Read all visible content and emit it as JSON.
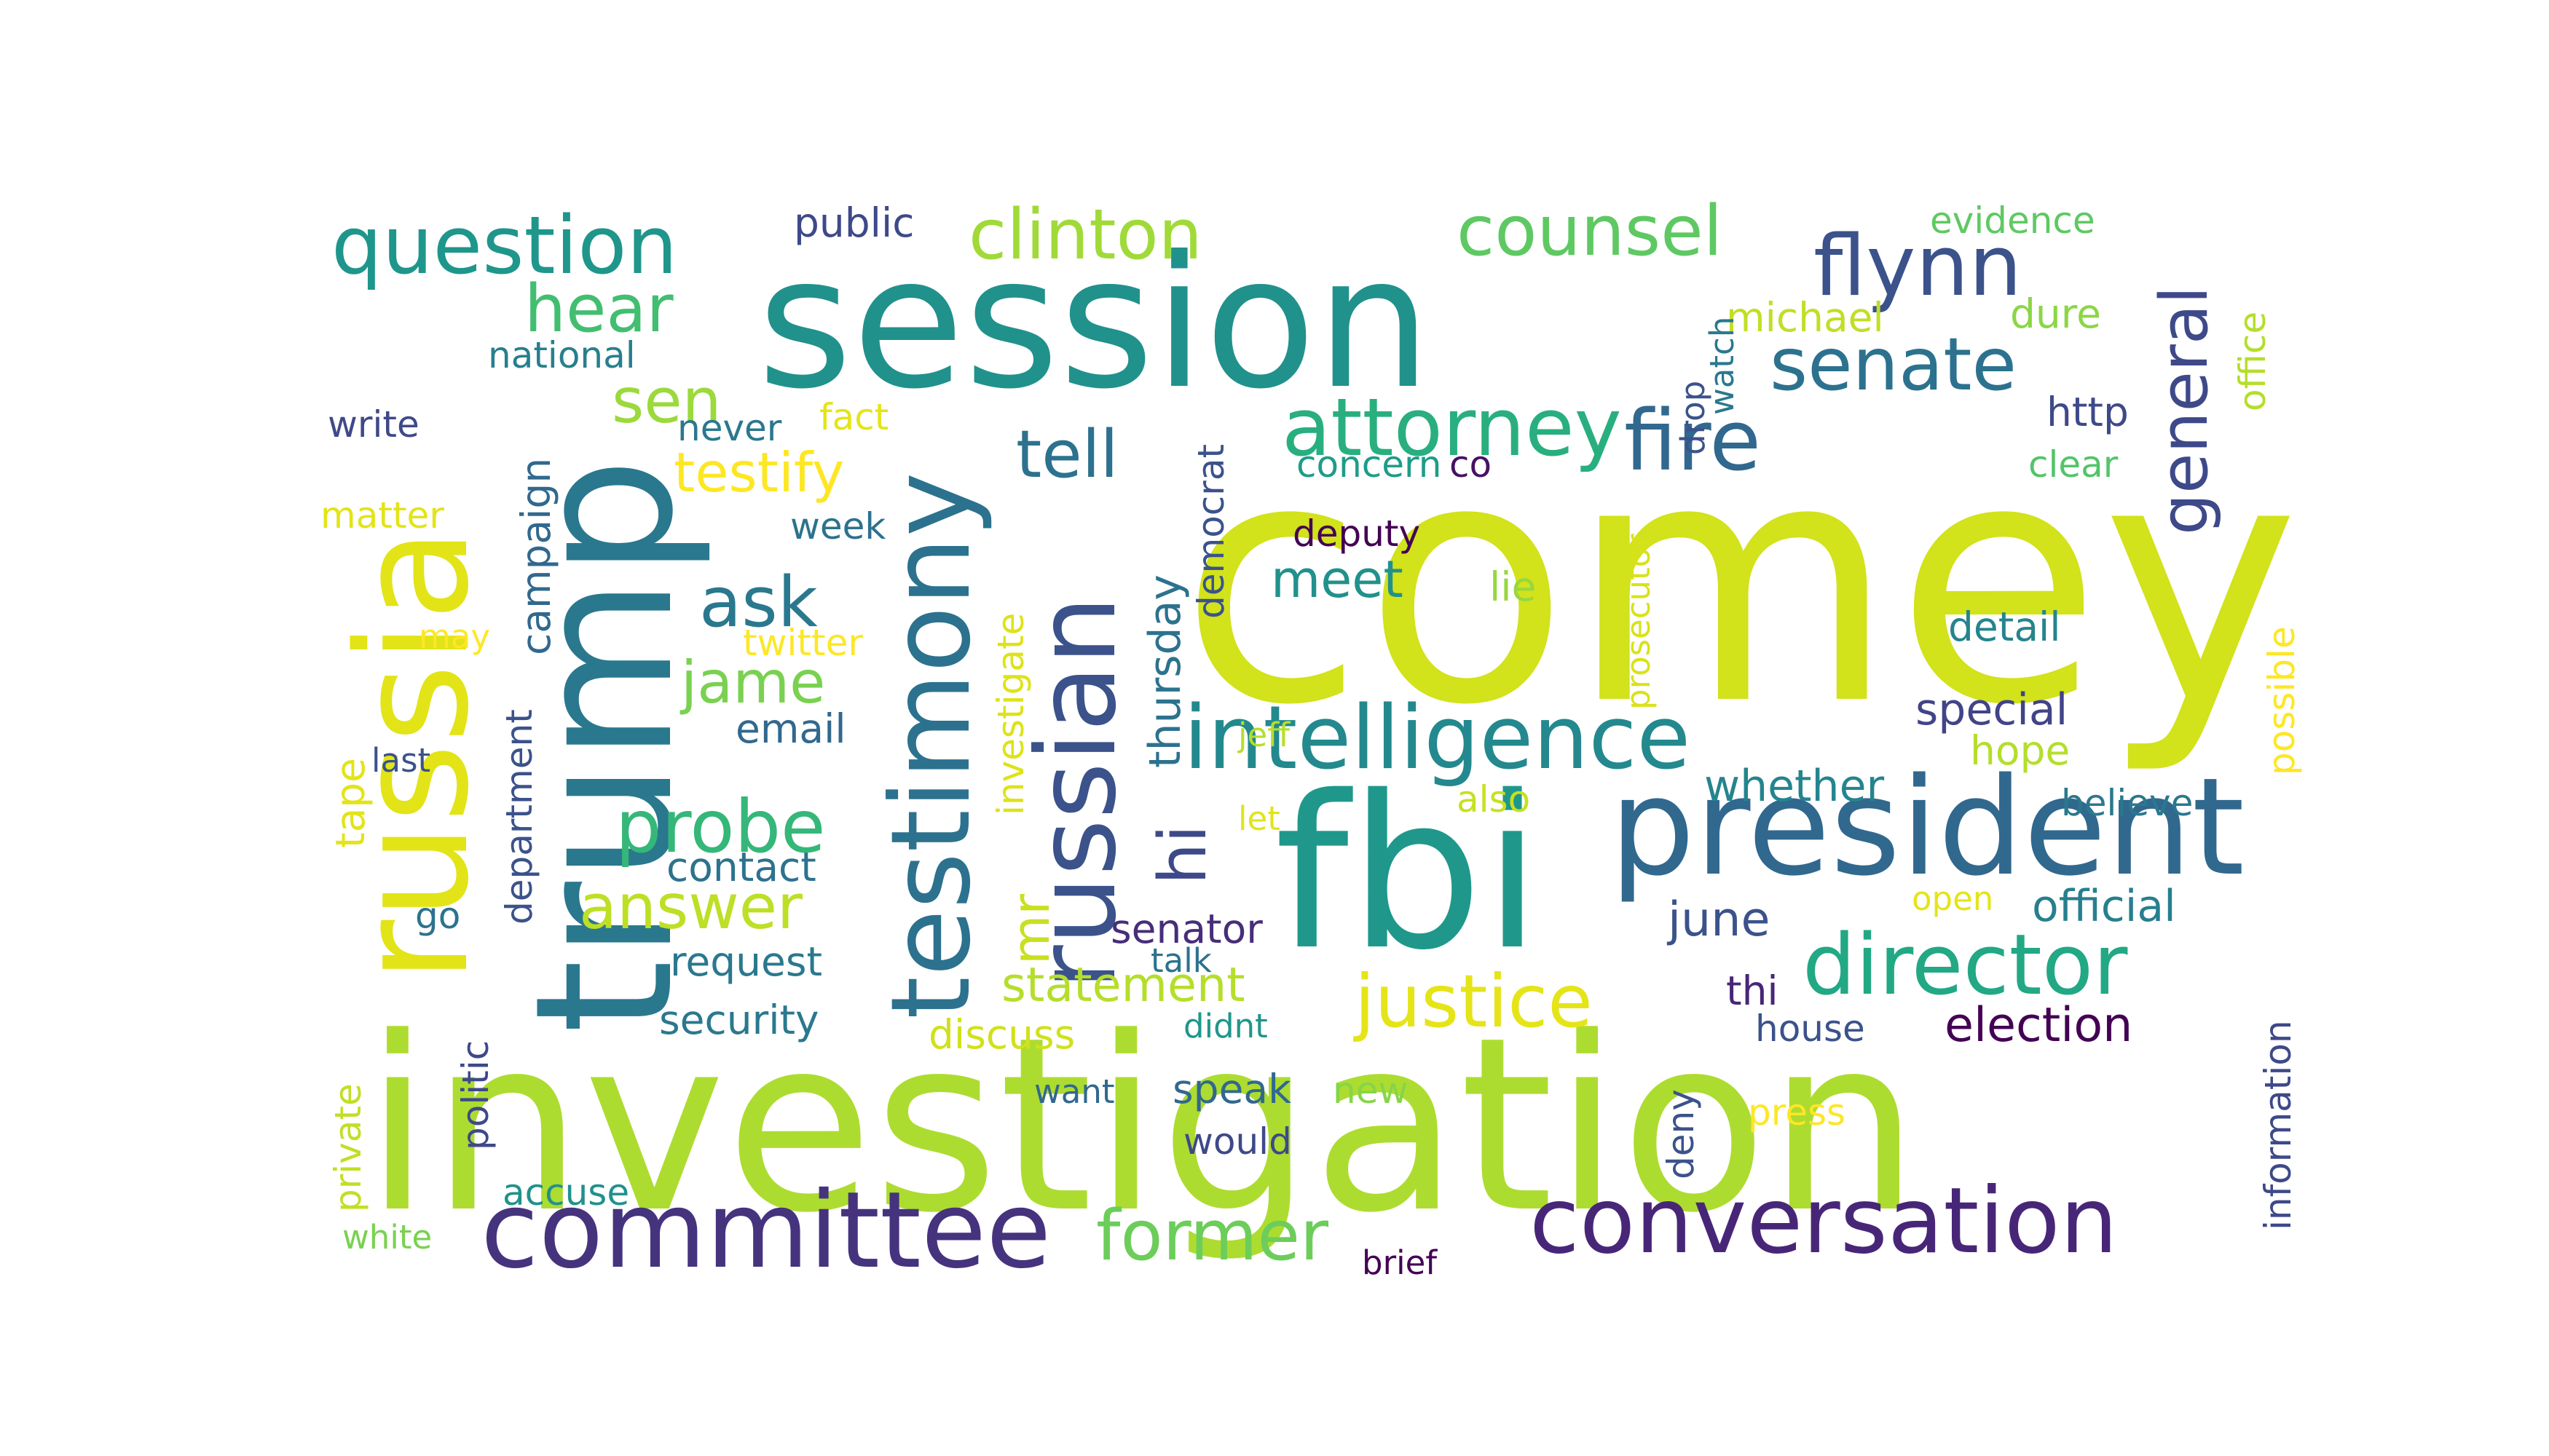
{
  "words": [
    {
      "text": "comey",
      "color": "#d2e21b"
    },
    {
      "text": "investigation",
      "color": "#addc30"
    },
    {
      "text": "session",
      "color": "#21918c"
    },
    {
      "text": "fbi",
      "color": "#1f988b"
    },
    {
      "text": "trump",
      "color": "#2a788e"
    },
    {
      "text": "russia",
      "color": "#e2e418"
    },
    {
      "text": "president",
      "color": "#31688e"
    },
    {
      "text": "testimony",
      "color": "#2c728e"
    },
    {
      "text": "russian",
      "color": "#3b528b"
    },
    {
      "text": "committee",
      "color": "#46337e"
    },
    {
      "text": "conversation",
      "color": "#482677"
    },
    {
      "text": "intelligence",
      "color": "#23898e"
    },
    {
      "text": "director",
      "color": "#22a884"
    },
    {
      "text": "question",
      "color": "#1f968b"
    },
    {
      "text": "attorney",
      "color": "#29af7f"
    },
    {
      "text": "senate",
      "color": "#2c728e"
    },
    {
      "text": "fire",
      "color": "#31688e"
    },
    {
      "text": "flynn",
      "color": "#3b528b"
    },
    {
      "text": "justice",
      "color": "#e5e419"
    },
    {
      "text": "clinton",
      "color": "#a0da39"
    },
    {
      "text": "counsel",
      "color": "#5ec962"
    },
    {
      "text": "general",
      "color": "#3e4989"
    },
    {
      "text": "probe",
      "color": "#35b779"
    },
    {
      "text": "former",
      "color": "#6ccd5a"
    },
    {
      "text": "tell",
      "color": "#2c728e"
    },
    {
      "text": "ask",
      "color": "#2a788e"
    },
    {
      "text": "hear",
      "color": "#42be71"
    },
    {
      "text": "answer",
      "color": "#bddf26"
    },
    {
      "text": "hi",
      "color": "#3e4989"
    },
    {
      "text": "mr",
      "color": "#c8e020"
    },
    {
      "text": "jame",
      "color": "#7ad151"
    },
    {
      "text": "sen",
      "color": "#9bd93c"
    },
    {
      "text": "testify",
      "color": "#fde725"
    },
    {
      "text": "thursday",
      "color": "#2c728e"
    },
    {
      "text": "election",
      "color": "#440154"
    },
    {
      "text": "statement",
      "color": "#b5de2b"
    },
    {
      "text": "special",
      "color": "#414487"
    },
    {
      "text": "official",
      "color": "#277f8e"
    },
    {
      "text": "june",
      "color": "#3b528b"
    },
    {
      "text": "meet",
      "color": "#21918c"
    },
    {
      "text": "campaign",
      "color": "#31688e"
    },
    {
      "text": "department",
      "color": "#3b528b"
    },
    {
      "text": "whether",
      "color": "#25848e"
    },
    {
      "text": "senator",
      "color": "#472d7b"
    },
    {
      "text": "security",
      "color": "#2a788e"
    },
    {
      "text": "democrat",
      "color": "#3b528b"
    },
    {
      "text": "investigate",
      "color": "#dde318"
    },
    {
      "text": "email",
      "color": "#31688e"
    },
    {
      "text": "tape",
      "color": "#e2e418"
    },
    {
      "text": "michael",
      "color": "#c0df25"
    },
    {
      "text": "dure",
      "color": "#8bd646"
    },
    {
      "text": "http",
      "color": "#3e4989"
    },
    {
      "text": "clear",
      "color": "#52c569"
    },
    {
      "text": "concern",
      "color": "#1e9c89"
    },
    {
      "text": "co",
      "color": "#471164"
    },
    {
      "text": "contact",
      "color": "#2c728e"
    },
    {
      "text": "request",
      "color": "#2a788e"
    },
    {
      "text": "discuss",
      "color": "#d0e11c"
    },
    {
      "text": "thi",
      "color": "#482677"
    },
    {
      "text": "house",
      "color": "#3b528b"
    },
    {
      "text": "public",
      "color": "#3e4989"
    },
    {
      "text": "evidence",
      "color": "#5ec962"
    },
    {
      "text": "national",
      "color": "#277f8e"
    },
    {
      "text": "write",
      "color": "#3e4989"
    },
    {
      "text": "never",
      "color": "#2a788e"
    },
    {
      "text": "fact",
      "color": "#e5e419"
    },
    {
      "text": "matter",
      "color": "#e2e418"
    },
    {
      "text": "week",
      "color": "#2c728e"
    },
    {
      "text": "may",
      "color": "#fde725"
    },
    {
      "text": "twitter",
      "color": "#fde725"
    },
    {
      "text": "last",
      "color": "#3b528b"
    },
    {
      "text": "deputy",
      "color": "#440154"
    },
    {
      "text": "lie",
      "color": "#95d840"
    },
    {
      "text": "detail",
      "color": "#25848e"
    },
    {
      "text": "hope",
      "color": "#b5de2b"
    },
    {
      "text": "jeff",
      "color": "#b5de2b"
    },
    {
      "text": "let",
      "color": "#e2e418"
    },
    {
      "text": "also",
      "color": "#c8e020"
    },
    {
      "text": "believe",
      "color": "#2a788e"
    },
    {
      "text": "open",
      "color": "#e5e419"
    },
    {
      "text": "talk",
      "color": "#2c728e"
    },
    {
      "text": "didnt",
      "color": "#1f968b"
    },
    {
      "text": "want",
      "color": "#31688e"
    },
    {
      "text": "speak",
      "color": "#31688e"
    },
    {
      "text": "new",
      "color": "#86d549"
    },
    {
      "text": "would",
      "color": "#3e4989"
    },
    {
      "text": "press",
      "color": "#fde725"
    },
    {
      "text": "brief",
      "color": "#440154"
    },
    {
      "text": "accuse",
      "color": "#21918c"
    },
    {
      "text": "white",
      "color": "#7ad151"
    },
    {
      "text": "go",
      "color": "#2c728e"
    },
    {
      "text": "politic",
      "color": "#3e4989"
    },
    {
      "text": "private",
      "color": "#c0df25"
    },
    {
      "text": "watch",
      "color": "#2a788e"
    },
    {
      "text": "drop",
      "color": "#3b528b"
    },
    {
      "text": "prosecutor",
      "color": "#d8e219"
    },
    {
      "text": "deny",
      "color": "#3b528b"
    },
    {
      "text": "office",
      "color": "#b5de2b"
    },
    {
      "text": "possible",
      "color": "#fde725"
    },
    {
      "text": "information",
      "color": "#3e4989"
    }
  ]
}
